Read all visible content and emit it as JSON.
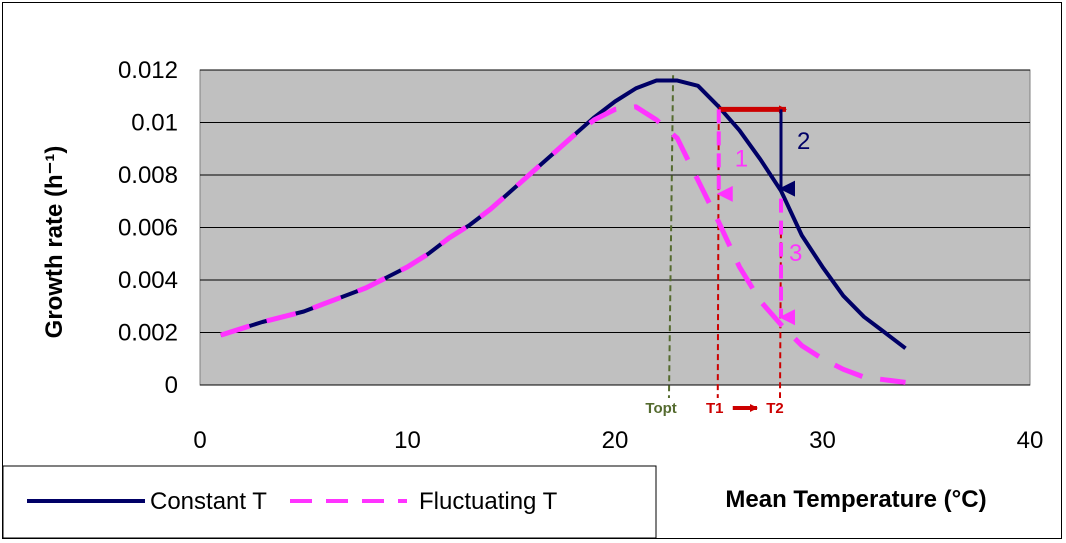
{
  "chart_data": {
    "type": "line",
    "xlabel": "Mean Temperature (°C)",
    "ylabel": "Growth rate (h⁻¹)",
    "xlim": [
      0,
      40
    ],
    "ylim": [
      0,
      0.012
    ],
    "x_ticks": [
      "0",
      "10",
      "20",
      "30",
      "40"
    ],
    "y_ticks": [
      "0",
      "0.002",
      "0.004",
      "0.006",
      "0.008",
      "0.01",
      "0.012"
    ],
    "grid": "horizontal",
    "plot_background": "#c0c0c0",
    "legend_position": "bottom-left",
    "series": [
      {
        "name": "Constant T",
        "color": "#000066",
        "style": "solid",
        "x": [
          1,
          3,
          5,
          6,
          8,
          10,
          11,
          12,
          13,
          14,
          15,
          16,
          17,
          18,
          19,
          20,
          21,
          22,
          23,
          24,
          25,
          26,
          27,
          28,
          29,
          30,
          31,
          32,
          33,
          34
        ],
        "y": [
          0.0019,
          0.0024,
          0.0028,
          0.0031,
          0.0037,
          0.0045,
          0.005,
          0.0056,
          0.0061,
          0.0067,
          0.0074,
          0.0081,
          0.0088,
          0.0095,
          0.0102,
          0.0108,
          0.0113,
          0.0116,
          0.0116,
          0.0114,
          0.0106,
          0.0097,
          0.0086,
          0.0074,
          0.0057,
          0.0045,
          0.0034,
          0.0026,
          0.002,
          0.0014
        ]
      },
      {
        "name": "Fluctuating T",
        "color": "#ff33ff",
        "style": "dashed",
        "x": [
          1,
          3,
          5,
          6,
          8,
          10,
          11,
          12,
          13,
          14,
          15,
          16,
          17,
          18,
          19,
          20,
          21,
          22,
          23,
          24,
          25,
          26,
          27,
          28,
          29,
          30,
          31,
          32,
          33,
          34
        ],
        "y": [
          0.0019,
          0.0024,
          0.0028,
          0.0031,
          0.0037,
          0.0045,
          0.005,
          0.0056,
          0.0061,
          0.0067,
          0.0074,
          0.0081,
          0.0088,
          0.0095,
          0.0101,
          0.0105,
          0.0106,
          0.0101,
          0.0094,
          0.0078,
          0.0062,
          0.0045,
          0.0032,
          0.0023,
          0.0015,
          0.001,
          0.0006,
          0.0003,
          0.0002,
          0.0001
        ]
      }
    ],
    "reference_lines": [
      {
        "label": "Topt",
        "x": 22.8,
        "color": "#556b2f"
      },
      {
        "label": "T1",
        "x": 25,
        "color": "#cc0000"
      },
      {
        "label": "T2",
        "x": 28,
        "color": "#cc0000"
      }
    ],
    "annotations": [
      {
        "label": "1",
        "color": "#ff33ff",
        "arrow": {
          "x1": 25,
          "y1": 0.0105,
          "x2": 25,
          "y2": 0.0069
        }
      },
      {
        "label": "2",
        "color": "#000066",
        "arrow": {
          "x1": 28,
          "y1": 0.0105,
          "x2": 28,
          "y2": 0.0071
        }
      },
      {
        "label": "3",
        "color": "#ff33ff",
        "arrow": {
          "x1": 28,
          "y1": 0.0071,
          "x2": 28,
          "y2": 0.0022
        }
      }
    ],
    "shift_arrow": {
      "x1": 25,
      "x2": 28,
      "y": 0.0105,
      "color": "#cc0000"
    }
  }
}
